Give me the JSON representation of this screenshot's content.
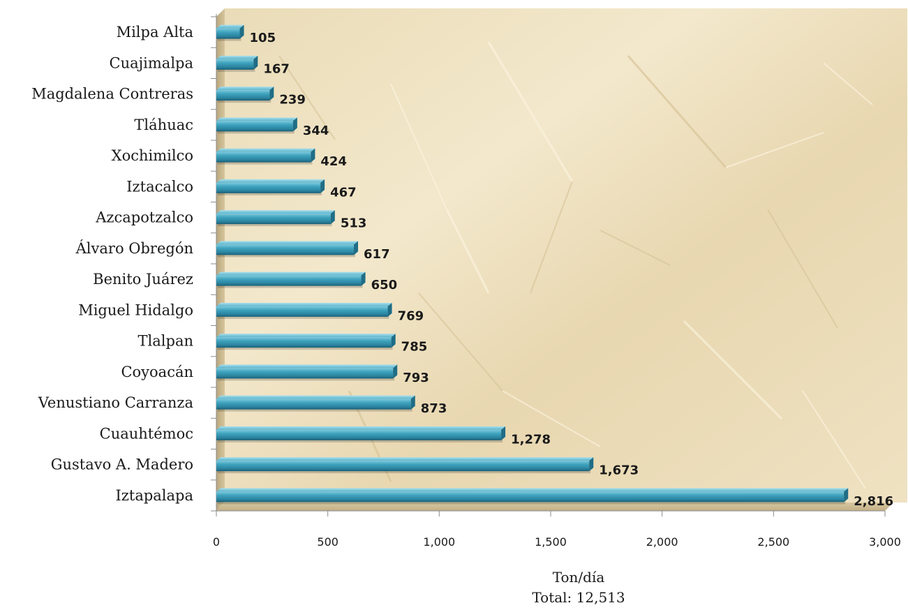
{
  "chart_data": {
    "type": "bar",
    "orientation": "horizontal",
    "categories": [
      "Milpa Alta",
      "Cuajimalpa",
      "Magdalena Contreras",
      "Tláhuac",
      "Xochimilco",
      "Iztacalco",
      "Azcapotzalco",
      "Álvaro Obregón",
      "Benito Juárez",
      "Miguel Hidalgo",
      "Tlalpan",
      "Coyoacán",
      "Venustiano Carranza",
      "Cuauhtémoc",
      "Gustavo A. Madero",
      "Iztapalapa"
    ],
    "values": [
      105,
      167,
      239,
      344,
      424,
      467,
      513,
      617,
      650,
      769,
      785,
      793,
      873,
      1278,
      1673,
      2816
    ],
    "value_labels": [
      "105",
      "167",
      "239",
      "344",
      "424",
      "467",
      "513",
      "617",
      "650",
      "769",
      "785",
      "793",
      "873",
      "1,278",
      "1,673",
      "2,816"
    ],
    "xlim": [
      0,
      3000
    ],
    "xticks": [
      0,
      500,
      1000,
      1500,
      2000,
      2500,
      3000
    ],
    "xtick_labels": [
      "0",
      "500",
      "1,000",
      "1,500",
      "2,000",
      "2,500",
      "3,000"
    ],
    "xlabel": "Ton/día",
    "note": "Total: 12,513",
    "grid": false,
    "legend": "none",
    "bar_color": "#2e8fa8",
    "plot_background": "crumpled-parchment"
  }
}
